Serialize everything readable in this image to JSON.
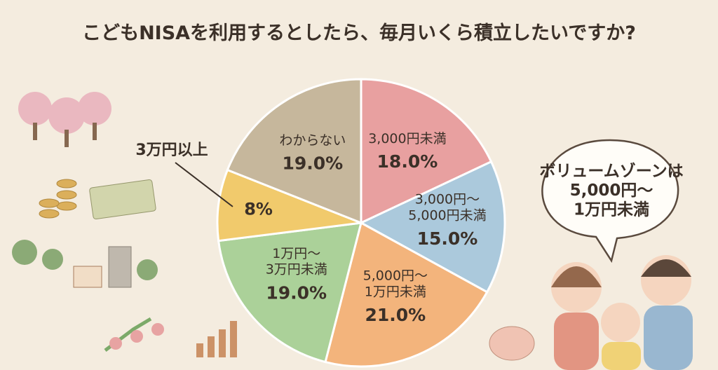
{
  "chart_data": {
    "type": "pie",
    "title": "こどもNISAを利用するとしたら、毎月いくら積立したいですか?",
    "categories": [
      "3,000円未満",
      "3,000円〜\n5,000円未満",
      "5,000円〜\n1万円未満",
      "1万円〜\n3万円未満",
      "3万円以上",
      "わからない"
    ],
    "values": [
      18,
      15,
      21,
      19,
      8,
      19
    ],
    "value_labels": [
      "18.0%",
      "15.0%",
      "21.0%",
      "19.0%",
      "8%",
      "19.0%"
    ],
    "colors": [
      "#e8a0a0",
      "#abc9dc",
      "#f3b47c",
      "#abd199",
      "#f1ca6c",
      "#c6b79c"
    ],
    "annotation": "ボリュームゾーンは\n5,000円〜\n1万円未満"
  }
}
